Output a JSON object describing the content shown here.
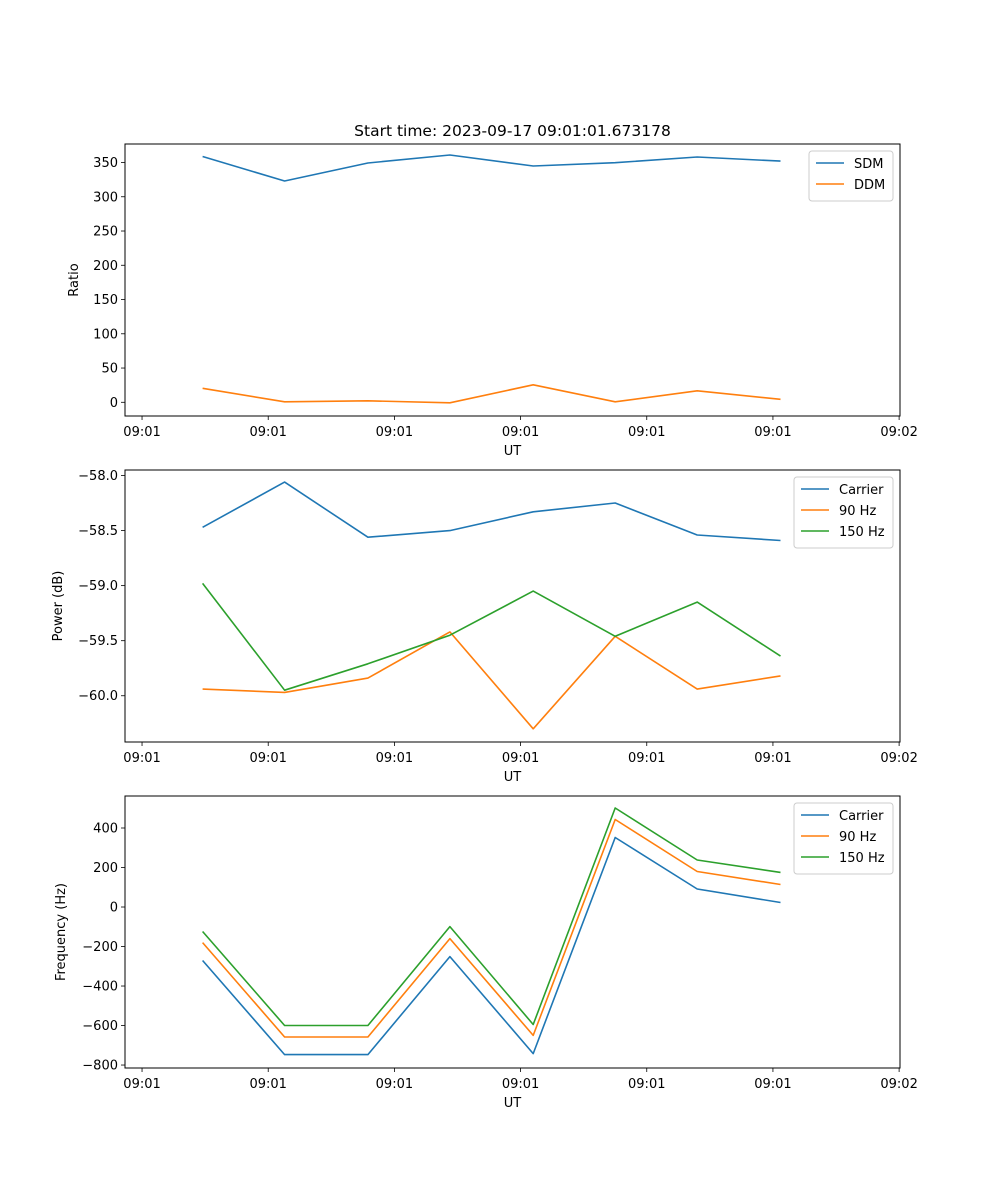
{
  "chart_data": [
    {
      "type": "line",
      "title": "Start time: 2023-09-17 09:01:01.673178",
      "xlabel": "UT",
      "ylabel": "Ratio",
      "x_unit": "seconds after 09:01:00",
      "x": [
        4.8,
        11.3,
        17.9,
        24.4,
        31.0,
        37.5,
        44.0,
        50.6
      ],
      "xlim": [
        -1.35,
        60.07
      ],
      "xticks": [
        0,
        10,
        20,
        30,
        40,
        50,
        60
      ],
      "xtick_labels": [
        "09:01",
        "09:01",
        "09:01",
        "09:01",
        "09:01",
        "09:01",
        "09:02"
      ],
      "ylim": [
        -20,
        377
      ],
      "yticks": [
        0,
        50,
        100,
        150,
        200,
        250,
        300,
        350
      ],
      "ytick_labels": [
        "0",
        "50",
        "100",
        "150",
        "200",
        "250",
        "300",
        "350"
      ],
      "grid": false,
      "legend_position": "top-right",
      "series": [
        {
          "name": "SDM",
          "color": "#1f77b4",
          "values": [
            358.8,
            323.0,
            349.3,
            361.0,
            344.9,
            349.7,
            358.0,
            352.0
          ]
        },
        {
          "name": "DDM",
          "color": "#ff7f0e",
          "values": [
            20.5,
            0.7,
            2.2,
            -0.7,
            25.6,
            0.7,
            16.8,
            4.4
          ]
        }
      ]
    },
    {
      "type": "line",
      "title": "",
      "xlabel": "UT",
      "ylabel": "Power (dB)",
      "x_unit": "seconds after 09:01:00",
      "x": [
        4.8,
        11.3,
        17.9,
        24.4,
        31.0,
        37.5,
        44.0,
        50.6
      ],
      "xlim": [
        -1.35,
        60.07
      ],
      "xticks": [
        0,
        10,
        20,
        30,
        40,
        50,
        60
      ],
      "xtick_labels": [
        "09:01",
        "09:01",
        "09:01",
        "09:01",
        "09:01",
        "09:01",
        "09:02"
      ],
      "ylim": [
        -60.42,
        -57.95
      ],
      "yticks": [
        -60.0,
        -59.5,
        -59.0,
        -58.5,
        -58.0
      ],
      "ytick_labels": [
        "−60.0",
        "−59.5",
        "−59.0",
        "−58.5",
        "−58.0"
      ],
      "grid": false,
      "legend_position": "top-right",
      "series": [
        {
          "name": "Carrier",
          "color": "#1f77b4",
          "values": [
            -58.47,
            -58.06,
            -58.56,
            -58.5,
            -58.33,
            -58.25,
            -58.54,
            -58.59
          ]
        },
        {
          "name": "90 Hz",
          "color": "#ff7f0e",
          "values": [
            -59.94,
            -59.97,
            -59.84,
            -59.42,
            -60.3,
            -59.46,
            -59.94,
            -59.82
          ]
        },
        {
          "name": "150 Hz",
          "color": "#2ca02c",
          "values": [
            -58.98,
            -59.95,
            -59.71,
            -59.45,
            -59.05,
            -59.46,
            -59.15,
            -59.64
          ]
        }
      ]
    },
    {
      "type": "line",
      "title": "",
      "xlabel": "UT",
      "ylabel": "Frequency (Hz)",
      "x_unit": "seconds after 09:01:00",
      "x": [
        4.8,
        11.3,
        17.9,
        24.4,
        31.0,
        37.5,
        44.0,
        50.6
      ],
      "xlim": [
        -1.35,
        60.07
      ],
      "xticks": [
        0,
        10,
        20,
        30,
        40,
        50,
        60
      ],
      "xtick_labels": [
        "09:01",
        "09:01",
        "09:01",
        "09:01",
        "09:01",
        "09:01",
        "09:02"
      ],
      "ylim": [
        -815,
        562
      ],
      "yticks": [
        -800,
        -600,
        -400,
        -200,
        0,
        200,
        400
      ],
      "ytick_labels": [
        "−800",
        "−600",
        "−400",
        "−200",
        "0",
        "200",
        "400"
      ],
      "grid": false,
      "legend_position": "top-right",
      "series": [
        {
          "name": "Carrier",
          "color": "#1f77b4",
          "values": [
            -271,
            -747,
            -747,
            -251,
            -742,
            352,
            91,
            23
          ]
        },
        {
          "name": "90 Hz",
          "color": "#ff7f0e",
          "values": [
            -180,
            -658,
            -658,
            -160,
            -650,
            443,
            180,
            114
          ]
        },
        {
          "name": "150 Hz",
          "color": "#2ca02c",
          "values": [
            -124,
            -600,
            -600,
            -99,
            -595,
            501,
            238,
            175
          ]
        }
      ]
    }
  ]
}
